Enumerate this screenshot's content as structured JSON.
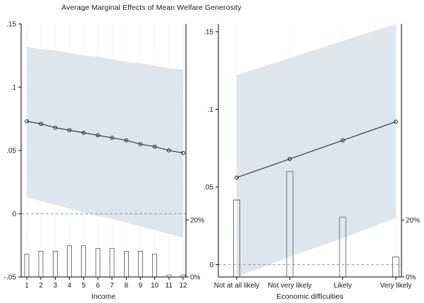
{
  "title": "Average Marginal Effects of Mean Welfare Generosity",
  "chart_data": {
    "type": "line",
    "title": "Average Marginal Effects of Mean Welfare Generosity",
    "description": "Two-panel AME plot with 95% confidence bands and histogram of moderator distribution (right axis in percent)",
    "legend_position": "none",
    "grid": "dotted-vertical",
    "panels": [
      {
        "name": "income",
        "xlabel": "Income",
        "x_tick_labels": [
          "1",
          "2",
          "3",
          "4",
          "5",
          "6",
          "7",
          "8",
          "9",
          "10",
          "11",
          "12"
        ],
        "ylim": [
          -0.05,
          0.15
        ],
        "yticks": [
          {
            "v": -0.05,
            "label": "-.05"
          },
          {
            "v": 0,
            "label": "0"
          },
          {
            "v": 0.05,
            "label": ".05"
          },
          {
            "v": 0.1,
            "label": ".1"
          },
          {
            "v": 0.15,
            "label": ".15"
          }
        ],
        "zero_line": 0,
        "ame": [
          0.073,
          0.071,
          0.068,
          0.066,
          0.064,
          0.062,
          0.06,
          0.058,
          0.055,
          0.053,
          0.05,
          0.048
        ],
        "ci_upper": [
          0.132,
          0.13,
          0.129,
          0.127,
          0.125,
          0.124,
          0.122,
          0.12,
          0.119,
          0.117,
          0.115,
          0.114
        ],
        "ci_lower": [
          0.013,
          0.01,
          0.007,
          0.004,
          0.001,
          -0.002,
          -0.004,
          -0.007,
          -0.01,
          -0.013,
          -0.016,
          -0.019
        ],
        "hist_pct": [
          8,
          9,
          9,
          11,
          11,
          10,
          10,
          9,
          9,
          8,
          0.8,
          0.8
        ],
        "pct_ticks": [
          {
            "pct": 0,
            "label": "0%"
          },
          {
            "pct": 20,
            "label": "20%"
          }
        ]
      },
      {
        "name": "economic-difficulties",
        "xlabel": "Economic difficulties",
        "x_tick_labels": [
          "Not at all likely",
          "Not very likely",
          "Likely",
          "Very likely"
        ],
        "ylim": [
          -0.008,
          0.155
        ],
        "yticks": [
          {
            "v": 0,
            "label": "0"
          },
          {
            "v": 0.05,
            "label": ".05"
          },
          {
            "v": 0.1,
            "label": ".1"
          },
          {
            "v": 0.15,
            "label": ".15"
          }
        ],
        "zero_line": 0,
        "ame": [
          0.056,
          0.068,
          0.08,
          0.092
        ],
        "ci_upper": [
          0.122,
          0.133,
          0.144,
          0.155
        ],
        "ci_lower": [
          -0.008,
          0.005,
          0.017,
          0.03
        ],
        "hist_pct": [
          27,
          37,
          21,
          7
        ],
        "pct_ticks": [
          {
            "pct": 0,
            "label": "0%"
          },
          {
            "pct": 20,
            "label": "20%"
          }
        ]
      }
    ],
    "colors": {
      "band": "#dde6ec",
      "line": "#262626",
      "marker": "#262626",
      "bar_outline": "#737373",
      "zero_line": "#8c8c8c",
      "grid": "#d6d6d6",
      "axis": "#000000",
      "text": "#1a1a1a"
    }
  }
}
